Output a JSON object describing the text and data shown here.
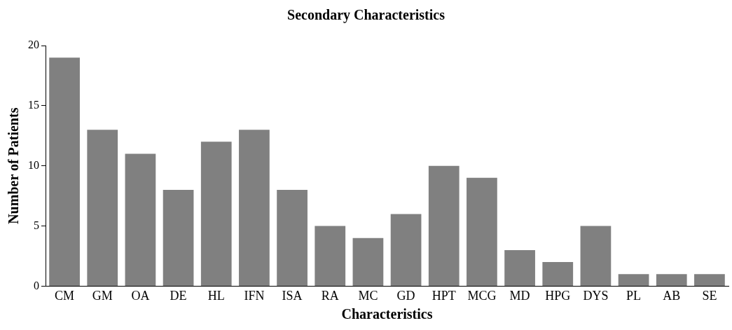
{
  "chart_data": {
    "type": "bar",
    "title": "Secondary Characteristics",
    "xlabel": "Characteristics",
    "ylabel": "Number of Patients",
    "categories": [
      "CM",
      "GM",
      "OA",
      "DE",
      "HL",
      "IFN",
      "ISA",
      "RA",
      "MC",
      "GD",
      "HPT",
      "MCG",
      "MD",
      "HPG",
      "DYS",
      "PL",
      "AB",
      "SE"
    ],
    "values": [
      19,
      13,
      11,
      8,
      12,
      13,
      8,
      5,
      4,
      6,
      10,
      9,
      3,
      2,
      5,
      1,
      1,
      1
    ],
    "color": "#808080",
    "ylim": [
      0,
      20
    ],
    "yticks": [
      0,
      5,
      10,
      15,
      20
    ],
    "grid": false,
    "legend": false
  }
}
